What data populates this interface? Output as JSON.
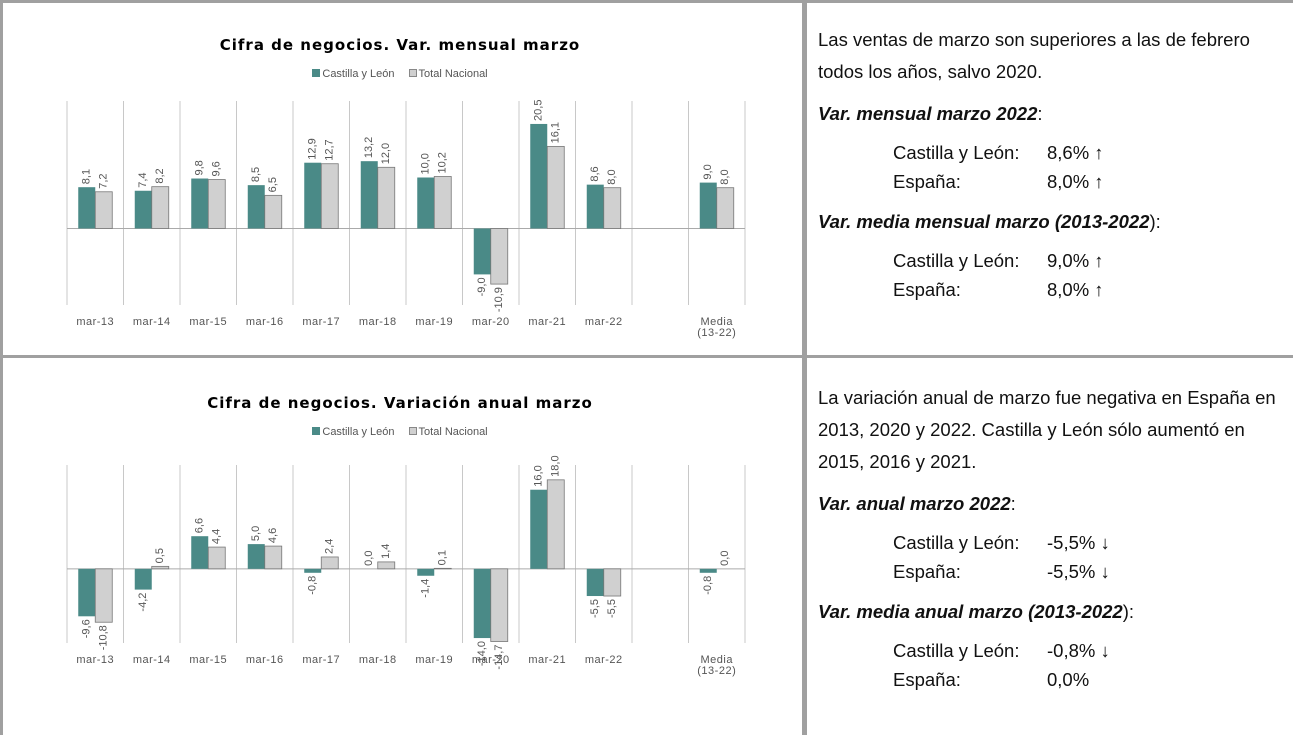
{
  "chart_data": [
    {
      "type": "bar",
      "title": "Cifra de negocios. Var. mensual marzo",
      "categories": [
        "mar-13",
        "mar-14",
        "mar-15",
        "mar-16",
        "mar-17",
        "mar-18",
        "mar-19",
        "mar-20",
        "mar-21",
        "mar-22",
        null,
        "Media (13-22)"
      ],
      "series": [
        {
          "name": "Castilla y León",
          "color": "#4a8a87",
          "values": [
            8.1,
            7.4,
            9.8,
            8.5,
            12.9,
            13.2,
            10.0,
            -9.0,
            20.5,
            8.6,
            null,
            9.0
          ],
          "value_labels": [
            "8,1",
            "7,4",
            "9,8",
            "8,5",
            "12,9",
            "13,2",
            "10,0",
            "-9,0",
            "20,5",
            "8,6",
            null,
            "9,0"
          ]
        },
        {
          "name": "Total Nacional",
          "color": "#d0d0d0",
          "values": [
            7.2,
            8.2,
            9.6,
            6.5,
            12.7,
            12.0,
            10.2,
            -10.9,
            16.1,
            8.0,
            null,
            8.0
          ],
          "value_labels": [
            "7,2",
            "8,2",
            "9,6",
            "6,5",
            "12,7",
            "12,0",
            "10,2",
            "-10,9",
            "16,1",
            "8,0",
            null,
            "8,0"
          ]
        }
      ],
      "ylim": [
        -15,
        25
      ]
    },
    {
      "type": "bar",
      "title": "Cifra de negocios. Variación anual marzo",
      "categories": [
        "mar-13",
        "mar-14",
        "mar-15",
        "mar-16",
        "mar-17",
        "mar-18",
        "mar-19",
        "mar-20",
        "mar-21",
        "mar-22",
        null,
        "Media (13-22)"
      ],
      "series": [
        {
          "name": "Castilla y León",
          "color": "#4a8a87",
          "values": [
            -9.6,
            -4.2,
            6.6,
            5.0,
            -0.8,
            0.0,
            -1.4,
            -14.0,
            16.0,
            -5.5,
            null,
            -0.8
          ],
          "value_labels": [
            "-9,6",
            "-4,2",
            "6,6",
            "5,0",
            "-0,8",
            "0,0",
            "-1,4",
            "-14,0",
            "16,0",
            "-5,5",
            null,
            "-0,8"
          ]
        },
        {
          "name": "Total Nacional",
          "color": "#d0d0d0",
          "values": [
            -10.8,
            0.5,
            4.4,
            4.6,
            2.4,
            1.4,
            0.1,
            -14.7,
            18.0,
            -5.5,
            null,
            0.0
          ],
          "value_labels": [
            "-10,8",
            "0,5",
            "4,4",
            "4,6",
            "2,4",
            "1,4",
            "0,1",
            "-14,7",
            "18,0",
            "-5,5",
            null,
            "0,0"
          ]
        }
      ],
      "ylim": [
        -15,
        21
      ]
    }
  ],
  "panels": [
    {
      "text": "Las ventas de marzo son superiores a las de febrero todos los años, salvo 2020.",
      "sections": [
        {
          "heading": "Var. mensual marzo 2022",
          "colon": ":",
          "rows": [
            [
              "Castilla y León:",
              "8,6% ↑"
            ],
            [
              "España:",
              "8,0% ↑"
            ]
          ]
        },
        {
          "heading": "Var. media mensual marzo (2013-2022",
          "colon": "):",
          "rows": [
            [
              "Castilla y León:",
              "9,0% ↑"
            ],
            [
              "España:",
              "8,0% ↑"
            ]
          ]
        }
      ]
    },
    {
      "text": "La variación anual de marzo fue negativa en España en 2013, 2020 y 2022. Castilla y León sólo aumentó en 2015, 2016 y 2021.",
      "sections": [
        {
          "heading": "Var. anual marzo 2022",
          "colon": ":",
          "rows": [
            [
              "Castilla y León:",
              "-5,5% ↓"
            ],
            [
              "España:",
              "-5,5% ↓"
            ]
          ]
        },
        {
          "heading": "Var. media anual marzo (2013-2022",
          "colon": "):",
          "rows": [
            [
              "Castilla y León:",
              "-0,8% ↓"
            ],
            [
              "España:",
              "0,0%"
            ]
          ]
        }
      ]
    }
  ]
}
